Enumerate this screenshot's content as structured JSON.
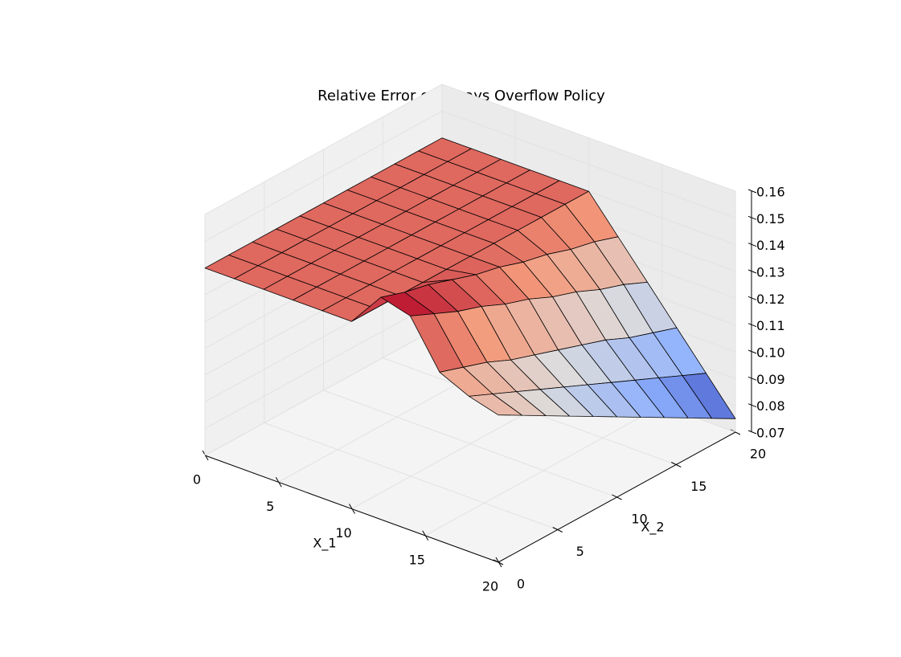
{
  "chart_data": {
    "type": "surface",
    "title": "Relative Error of Always Overflow Policy",
    "xlabel": "X_1",
    "ylabel": "X_2",
    "colormap": "coolwarm",
    "grid": true,
    "x": [
      0,
      2,
      4,
      6,
      8,
      10,
      12,
      14,
      16,
      18,
      20
    ],
    "y": [
      0,
      2,
      4,
      6,
      8,
      10,
      12,
      14,
      16,
      18,
      20
    ],
    "z": [
      [
        0.14,
        0.14,
        0.14,
        0.14,
        0.14,
        0.14,
        0.14,
        0.14,
        0.14,
        0.14,
        0.14
      ],
      [
        0.14,
        0.14,
        0.14,
        0.14,
        0.14,
        0.14,
        0.14,
        0.14,
        0.14,
        0.14,
        0.14
      ],
      [
        0.14,
        0.14,
        0.14,
        0.14,
        0.14,
        0.14,
        0.14,
        0.14,
        0.14,
        0.14,
        0.14
      ],
      [
        0.14,
        0.14,
        0.14,
        0.14,
        0.14,
        0.14,
        0.14,
        0.14,
        0.14,
        0.14,
        0.14
      ],
      [
        0.14,
        0.14,
        0.14,
        0.14,
        0.14,
        0.14,
        0.14,
        0.14,
        0.14,
        0.14,
        0.14
      ],
      [
        0.14,
        0.14,
        0.14,
        0.14,
        0.14,
        0.14,
        0.14,
        0.14,
        0.14,
        0.14,
        0.14
      ],
      [
        0.153,
        0.15,
        0.148,
        0.145,
        0.142,
        0.14,
        0.137,
        0.135,
        0.132,
        0.13,
        0.127
      ],
      [
        0.15,
        0.146,
        0.142,
        0.139,
        0.135,
        0.132,
        0.128,
        0.125,
        0.121,
        0.118,
        0.114
      ],
      [
        0.133,
        0.13,
        0.127,
        0.123,
        0.12,
        0.117,
        0.114,
        0.111,
        0.107,
        0.104,
        0.101
      ],
      [
        0.128,
        0.124,
        0.12,
        0.116,
        0.112,
        0.108,
        0.104,
        0.1,
        0.096,
        0.092,
        0.088
      ],
      [
        0.125,
        0.12,
        0.115,
        0.11,
        0.105,
        0.1,
        0.095,
        0.09,
        0.085,
        0.08,
        0.075
      ]
    ],
    "xlim": [
      0,
      20
    ],
    "ylim": [
      0,
      20
    ],
    "zlim": [
      0.07,
      0.16
    ],
    "xticks": [
      0,
      5,
      10,
      15,
      20
    ],
    "yticks": [
      0,
      5,
      10,
      15,
      20
    ],
    "zticks": [
      0.07,
      0.08,
      0.09,
      {
        "value": 0.1,
        "label": "0.10"
      },
      0.11,
      0.12,
      0.13,
      0.14,
      0.15,
      0.16
    ]
  }
}
